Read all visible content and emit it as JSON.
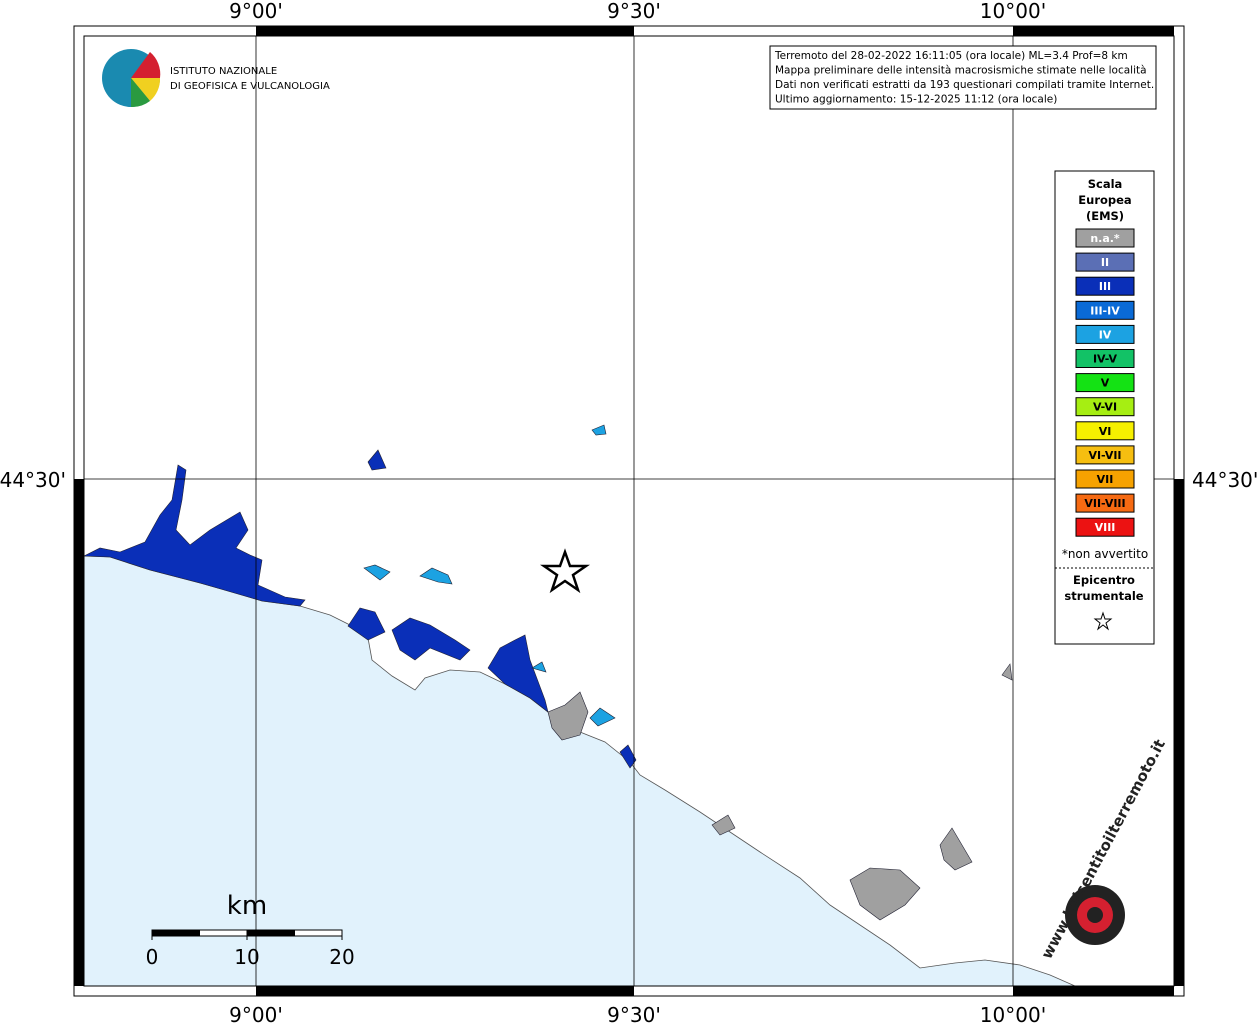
{
  "axes": {
    "x_labels": [
      "9°00'",
      "9°30'",
      "10°00'"
    ],
    "y_labels": [
      "44°30'"
    ]
  },
  "logo": {
    "lines": [
      "ISTITUTO NAZIONALE",
      "DI GEOFISICA E VULCANOLOGIA"
    ]
  },
  "header": {
    "lines": [
      "Terremoto del 28-02-2022 16:11:05 (ora locale) ML=3.4 Prof=8 km",
      "Mappa preliminare delle intensità macrosismiche stimate nelle località",
      "Dati non verificati estratti da 193 questionari compilati tramite Internet.",
      "Ultimo aggiornamento: 15-12-2025 11:12 (ora locale)"
    ]
  },
  "legend": {
    "title": [
      "Scala",
      "Europea",
      "(EMS)"
    ],
    "items": [
      {
        "label": "n.a.*",
        "color": "#a0a0a0"
      },
      {
        "label": "II",
        "color": "#5b6fb5"
      },
      {
        "label": "III",
        "color": "#0a2fb8"
      },
      {
        "label": "III-IV",
        "color": "#0a6ad6"
      },
      {
        "label": "IV",
        "color": "#1ca2e2"
      },
      {
        "label": "IV-V",
        "color": "#12c266"
      },
      {
        "label": "V",
        "color": "#14e214"
      },
      {
        "label": "V-VI",
        "color": "#a6ee12"
      },
      {
        "label": "VI",
        "color": "#f6f000"
      },
      {
        "label": "VI-VII",
        "color": "#f6be10"
      },
      {
        "label": "VII",
        "color": "#f6a200"
      },
      {
        "label": "VII-VIII",
        "color": "#f66a12"
      },
      {
        "label": "VIII",
        "color": "#ec1212"
      }
    ],
    "note": "*non avvertito",
    "epicentre": [
      "Epicentro",
      "strumentale"
    ]
  },
  "scale_bar": {
    "unit": "km",
    "ticks": [
      0,
      10,
      20
    ]
  },
  "watermark": "www.haisentitoilterremoto.it"
}
